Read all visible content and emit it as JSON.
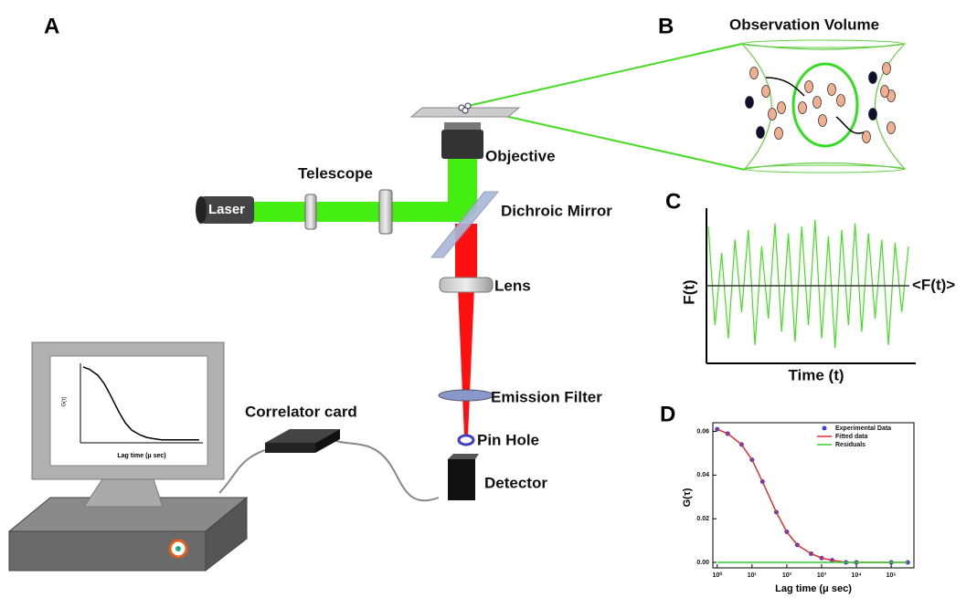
{
  "panels": {
    "a": "A",
    "b": "B",
    "c": "C",
    "d": "D"
  },
  "setup": {
    "laser": "Laser",
    "telescope": "Telescope",
    "objective": "Objective",
    "dichroic": "Dichroic Mirror",
    "lens": "Lens",
    "emission_filter": "Emission Filter",
    "pin_hole": "Pin Hole",
    "detector": "Detector",
    "correlator": "Correlator card"
  },
  "observation": {
    "title": "Observation Volume"
  },
  "fluctuation": {
    "ylabel": "F(t)",
    "xlabel": "Time (t)",
    "mean_label": "<F(t)>"
  },
  "chart_data": {
    "type": "line",
    "ylabel": "G(τ)",
    "xlabel": "Lag time (μ sec)",
    "log_x": true,
    "x": [
      1,
      2,
      5,
      10,
      20,
      50,
      100,
      200,
      500,
      1000,
      2000,
      5000,
      10000,
      100000,
      300000
    ],
    "series": [
      {
        "name": "Experimental Data",
        "color": "#4040e0",
        "marker": "circle",
        "values": [
          0.061,
          0.059,
          0.054,
          0.047,
          0.037,
          0.023,
          0.014,
          0.008,
          0.004,
          0.002,
          0.001,
          0.0,
          0.0,
          0.0,
          0.0
        ]
      },
      {
        "name": "Fitted data",
        "color": "#e03030",
        "marker": "line",
        "values": [
          0.061,
          0.059,
          0.054,
          0.047,
          0.037,
          0.023,
          0.014,
          0.008,
          0.004,
          0.002,
          0.001,
          0.0,
          0.0,
          0.0,
          0.0
        ]
      },
      {
        "name": "Residuals",
        "color": "#30d030",
        "marker": "line",
        "values": [
          0.0,
          0.0,
          0.0,
          0.0,
          0.0,
          0.0,
          0.0,
          0.0,
          0.0,
          0.0,
          0.0,
          0.0,
          0.0,
          0.0,
          0.0
        ]
      }
    ],
    "xlim": [
      0.75,
      450000
    ],
    "ylim": [
      -0.0025,
      0.064
    ],
    "xticks": [
      {
        "value": 1,
        "label": "10⁰"
      },
      {
        "value": 10,
        "label": "10¹"
      },
      {
        "value": 100,
        "label": "10²"
      },
      {
        "value": 1000,
        "label": "10³"
      },
      {
        "value": 10000,
        "label": "10⁴"
      },
      {
        "value": 100000,
        "label": "10⁵"
      }
    ],
    "yticks": [
      {
        "value": 0,
        "label": "0.00"
      },
      {
        "value": 0.02,
        "label": "0.02"
      },
      {
        "value": 0.04,
        "label": "0.04"
      },
      {
        "value": 0.06,
        "label": "0.06"
      }
    ],
    "legend": "upper right"
  }
}
